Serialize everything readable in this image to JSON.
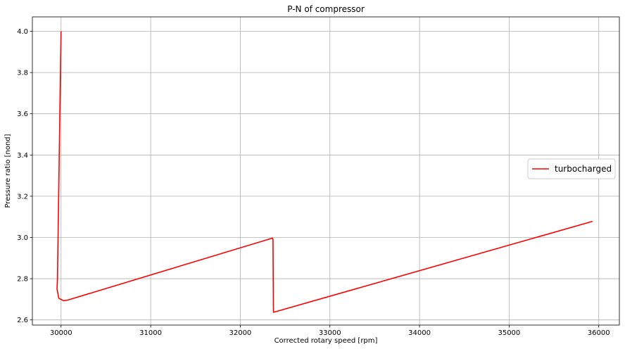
{
  "chart_data": {
    "type": "line",
    "title": "P-N of compressor",
    "xlabel": "Corrected rotary speed [rpm]",
    "ylabel": "Pressure ratio [nond]",
    "xlim": [
      29680,
      36230
    ],
    "ylim": [
      2.575,
      4.07
    ],
    "x_ticks": [
      30000,
      31000,
      32000,
      33000,
      34000,
      35000,
      36000
    ],
    "y_ticks": [
      2.6,
      2.8,
      3.0,
      3.2,
      3.4,
      3.6,
      3.8,
      4.0
    ],
    "y_tick_labels": [
      "2.6",
      "2.8",
      "3.0",
      "3.2",
      "3.4",
      "3.6",
      "3.8",
      "4.0"
    ],
    "grid": true,
    "legend_position": "center-right",
    "series": [
      {
        "name": "turbocharged",
        "color": "#ff0000",
        "x": [
          30000,
          29960,
          29955,
          29975,
          30030,
          30080,
          32360,
          32365,
          32370,
          35930
        ],
        "y": [
          4.0,
          2.8,
          2.75,
          2.705,
          2.693,
          2.697,
          2.997,
          2.99,
          2.637,
          3.078
        ]
      }
    ]
  }
}
